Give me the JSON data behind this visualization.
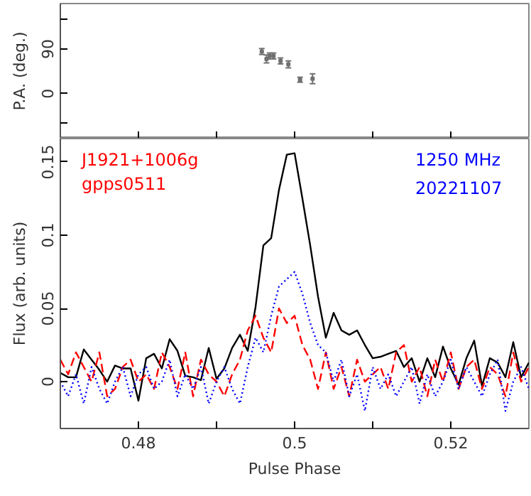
{
  "chart_data": [
    {
      "type": "scatter",
      "ylabel": "P.A. (deg.)",
      "marker": "square",
      "tick_labels": "y",
      "xlim": [
        0.47,
        0.53
      ],
      "xticks": [
        {
          "value": 0.48,
          "label": null
        },
        {
          "value": 0.49,
          "label": null
        },
        {
          "value": 0.5,
          "label": null
        },
        {
          "value": 0.51,
          "label": null
        },
        {
          "value": 0.52,
          "label": null
        }
      ],
      "ylim": [
        -91,
        182
      ],
      "yticks": [
        {
          "value": -60,
          "label": null
        },
        0,
        90,
        {
          "value": 150,
          "label": null
        }
      ],
      "series": [
        {
          "color": "#707070",
          "x": [
            0.4958,
            0.4964,
            0.4968,
            0.4973,
            0.4982,
            0.4992,
            0.5007,
            0.5023
          ],
          "values": [
            85,
            70,
            76,
            76,
            66,
            59,
            28,
            30
          ],
          "errors": [
            6,
            8,
            6,
            6,
            6,
            7,
            5,
            10
          ]
        }
      ]
    },
    {
      "type": "line",
      "xlabel": "Pulse Phase",
      "ylabel": "Flux (arb. units)",
      "xlim": [
        0.47,
        0.53
      ],
      "xticks": [
        0.48,
        {
          "value": 0.49,
          "label": null
        },
        0.5,
        {
          "value": 0.51,
          "label": null
        },
        0.52
      ],
      "ylim": [
        -0.032,
        0.166
      ],
      "yticks": [
        0,
        0.05,
        0.1,
        0.15
      ],
      "annotations": [
        "J1921+1006g",
        "gpps0511",
        "1250 MHz",
        "20221107"
      ],
      "x": [
        0.47,
        0.471,
        0.472,
        0.473,
        0.474,
        0.475,
        0.476,
        0.477,
        0.478,
        0.479,
        0.48,
        0.481,
        0.482,
        0.483,
        0.484,
        0.485,
        0.486,
        0.487,
        0.488,
        0.489,
        0.49,
        0.491,
        0.492,
        0.493,
        0.494,
        0.495,
        0.496,
        0.497,
        0.498,
        0.499,
        0.5,
        0.501,
        0.502,
        0.503,
        0.504,
        0.505,
        0.506,
        0.507,
        0.508,
        0.509,
        0.51,
        0.511,
        0.512,
        0.513,
        0.514,
        0.515,
        0.516,
        0.517,
        0.518,
        0.519,
        0.52,
        0.521,
        0.522,
        0.523,
        0.524,
        0.525,
        0.526,
        0.527,
        0.528,
        0.529,
        0.53
      ],
      "series": [
        {
          "color": "#000000",
          "line_style": "solid",
          "values": [
            0.006,
            0.003,
            0.003,
            0.022,
            0.015,
            0.008,
            0.0,
            0.011,
            0.009,
            0.009,
            -0.013,
            0.016,
            0.019,
            0.009,
            0.029,
            0.021,
            0.004,
            0.003,
            0.001,
            0.023,
            0.002,
            0.009,
            0.023,
            0.032,
            0.021,
            0.051,
            0.093,
            0.098,
            0.131,
            0.155,
            0.156,
            0.125,
            0.093,
            0.058,
            0.03,
            0.047,
            0.035,
            0.032,
            0.035,
            0.025,
            0.016,
            0.017,
            0.019,
            0.021,
            0.01,
            0.016,
            0.0,
            0.016,
            0.003,
            0.024,
            0.009,
            -0.002,
            0.016,
            0.028,
            -0.003,
            0.016,
            0.013,
            0.003,
            0.027,
            0.003,
            0.013
          ]
        },
        {
          "color": "#ff0000",
          "line_style": "dashed",
          "values": [
            0.015,
            0.005,
            0.02,
            0.01,
            0.0,
            0.02,
            -0.01,
            -0.005,
            0.01,
            0.015,
            0.0,
            0.005,
            -0.005,
            0.02,
            0.01,
            -0.005,
            0.02,
            -0.01,
            0.015,
            0.005,
            0.0,
            -0.01,
            0.005,
            0.015,
            0.035,
            0.045,
            0.03,
            0.02,
            0.05,
            0.04,
            0.045,
            0.025,
            0.015,
            -0.005,
            0.02,
            -0.005,
            0.01,
            -0.01,
            0.015,
            0.0,
            0.005,
            0.01,
            -0.005,
            0.02,
            0.025,
            0.0,
            0.01,
            -0.01,
            0.015,
            0.0,
            0.02,
            -0.005,
            0.01,
            0.015,
            -0.005,
            0.01,
            0.005,
            -0.01,
            0.02,
            0.0,
            0.01
          ]
        },
        {
          "color": "#0000ff",
          "line_style": "dotted",
          "values": [
            0.0,
            -0.01,
            0.005,
            -0.015,
            0.01,
            -0.005,
            -0.015,
            0.0,
            0.01,
            -0.01,
            0.005,
            0.01,
            -0.005,
            0.0,
            0.015,
            -0.01,
            0.005,
            -0.005,
            0.01,
            -0.015,
            0.0,
            0.01,
            -0.005,
            -0.015,
            0.01,
            0.03,
            0.02,
            0.045,
            0.065,
            0.07,
            0.075,
            0.06,
            0.04,
            0.025,
            0.02,
            0.0,
            0.015,
            -0.01,
            0.005,
            -0.02,
            0.01,
            -0.005,
            0.005,
            -0.01,
            0.0,
            0.01,
            -0.015,
            0.005,
            -0.01,
            0.0,
            0.015,
            -0.005,
            0.01,
            0.0,
            -0.01,
            0.005,
            0.015,
            -0.02,
            0.0,
            0.01,
            -0.005
          ]
        }
      ]
    }
  ]
}
